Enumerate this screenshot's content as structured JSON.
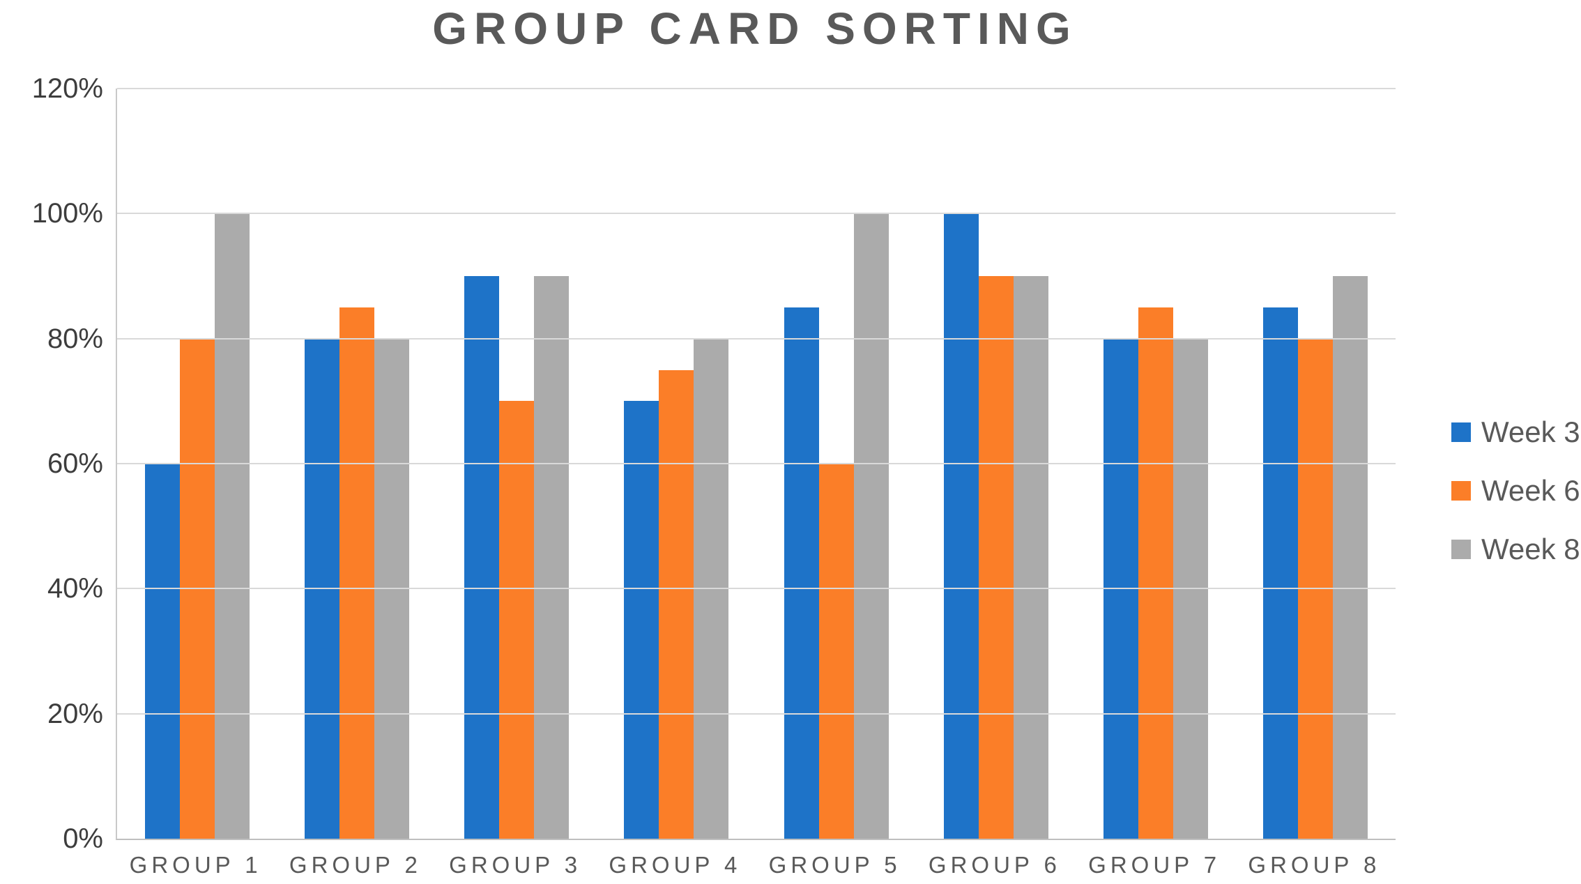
{
  "chart_data": {
    "type": "bar",
    "title": "GROUP CARD SORTING",
    "categories": [
      "GROUP 1",
      "GROUP 2",
      "GROUP 3",
      "GROUP 4",
      "GROUP 5",
      "GROUP 6",
      "GROUP 7",
      "GROUP 8"
    ],
    "series": [
      {
        "name": "Week 3",
        "color": "#1E73C8",
        "values": [
          60,
          80,
          90,
          70,
          85,
          100,
          80,
          85
        ]
      },
      {
        "name": "Week 6",
        "color": "#FB7E28",
        "values": [
          80,
          85,
          70,
          75,
          60,
          90,
          85,
          80
        ]
      },
      {
        "name": "Week 8",
        "color": "#ABABAB",
        "values": [
          100,
          80,
          90,
          80,
          100,
          90,
          80,
          90
        ]
      }
    ],
    "unit": "%",
    "ylim": [
      0,
      120
    ],
    "y_ticks": [
      "120%",
      "100%",
      "80%",
      "60%",
      "40%",
      "20%",
      "0%"
    ],
    "grid": "horizontal",
    "legend_position": "right",
    "colors": {
      "title_text": "#595959",
      "axis_label_text": "#595959",
      "tick_label_text": "#3D3D3D",
      "gridline": "#D9D9D9",
      "axis_line": "#BFBFBF",
      "background": "#FFFFFF"
    }
  }
}
